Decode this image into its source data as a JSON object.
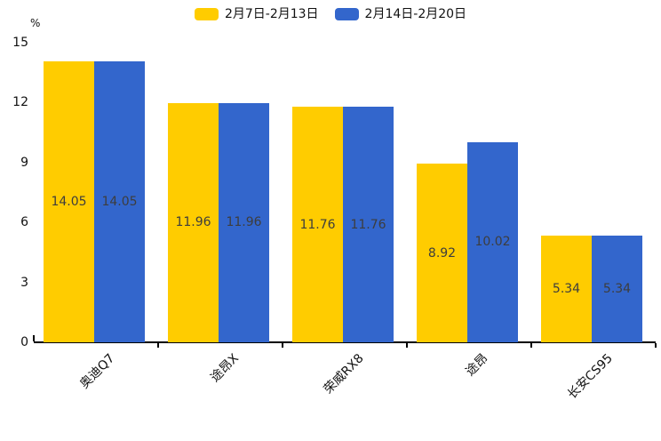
{
  "chart_data": {
    "type": "bar",
    "categories": [
      "奥迪Q7",
      "途昂X",
      "荣威RX8",
      "途昂",
      "长安CS95"
    ],
    "series": [
      {
        "name": "2月7日-2月13日",
        "color": "#FFCC00",
        "values": [
          14.05,
          11.96,
          11.76,
          8.92,
          5.34
        ]
      },
      {
        "name": "2月14日-2月20日",
        "color": "#3366CC",
        "values": [
          14.05,
          11.96,
          11.76,
          10.02,
          5.34
        ]
      }
    ],
    "title": "",
    "xlabel": "",
    "ylabel": "%",
    "ylim": [
      0,
      15
    ],
    "yticks": [
      0,
      3,
      6,
      9,
      12,
      15
    ],
    "grid": false,
    "legend_position": "top-center",
    "value_labels": "centered-inside-bars",
    "value_label_color": "#3d3d3d",
    "axis_color": "#000000",
    "background_color": "#ffffff"
  }
}
